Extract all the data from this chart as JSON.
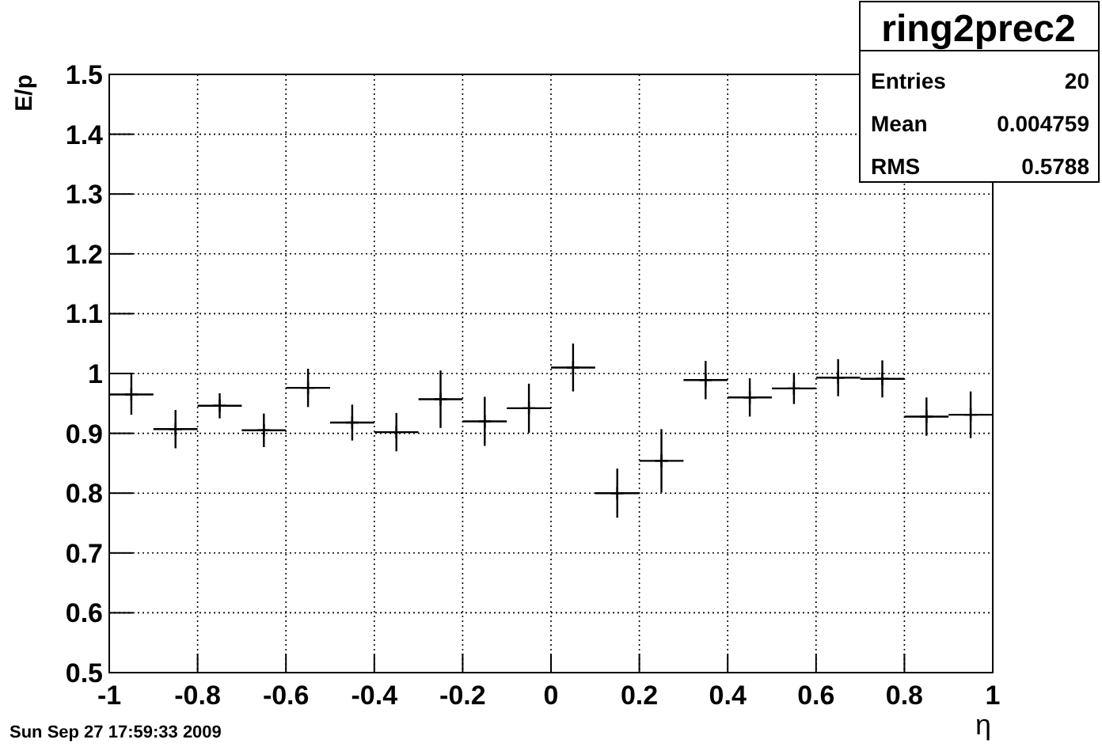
{
  "chart_data": {
    "type": "scatter",
    "xlabel": "η",
    "ylabel": "E/p",
    "x": [
      -0.95,
      -0.85,
      -0.75,
      -0.65,
      -0.55,
      -0.45,
      -0.35,
      -0.25,
      -0.15,
      -0.05,
      0.05,
      0.15,
      0.25,
      0.35,
      0.45,
      0.55,
      0.65,
      0.75,
      0.85,
      0.95
    ],
    "series": [
      {
        "color": "#000000",
        "values": [
          0.965,
          0.907,
          0.946,
          0.905,
          0.976,
          0.918,
          0.902,
          0.957,
          0.92,
          0.942,
          1.01,
          0.8,
          0.854,
          0.989,
          0.96,
          0.975,
          0.993,
          0.991,
          0.928,
          0.931
        ],
        "errors": [
          0.034,
          0.032,
          0.021,
          0.028,
          0.032,
          0.03,
          0.032,
          0.048,
          0.041,
          0.041,
          0.04,
          0.041,
          0.053,
          0.032,
          0.032,
          0.026,
          0.031,
          0.031,
          0.032,
          0.039
        ],
        "xerrors": [
          0.05,
          0.05,
          0.05,
          0.05,
          0.05,
          0.05,
          0.05,
          0.05,
          0.05,
          0.05,
          0.05,
          0.05,
          0.05,
          0.05,
          0.05,
          0.05,
          0.05,
          0.05,
          0.05,
          0.05
        ]
      }
    ],
    "marker": "cross",
    "grid": true,
    "xlim": [
      -1,
      1
    ],
    "xticks": [
      -1,
      -0.8,
      -0.6,
      -0.4,
      -0.2,
      0,
      0.2,
      0.4,
      0.6,
      0.8,
      1
    ],
    "ylim": [
      0.5,
      1.5
    ],
    "yticks": [
      0.5,
      0.6,
      0.7,
      0.8,
      0.9,
      1,
      1.1,
      1.2,
      1.3,
      1.4,
      1.5
    ],
    "annotations": [
      "ring2prec2",
      "Entries",
      "20",
      "Mean",
      "0.004759",
      "RMS",
      "0.5788",
      "Sun Sep 27 17:59:33 2009"
    ]
  }
}
